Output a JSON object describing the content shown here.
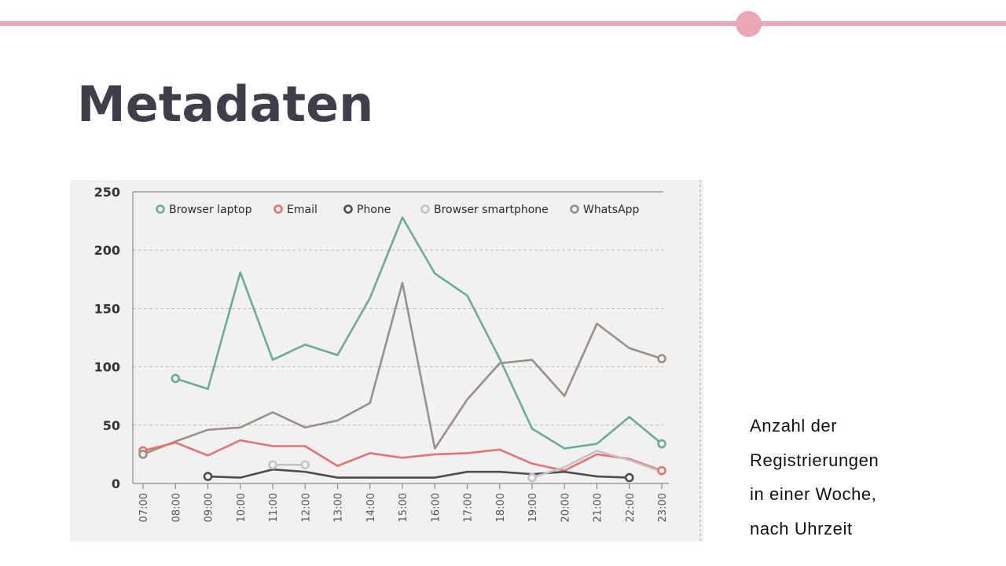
{
  "page": {
    "title": "Metadaten",
    "caption_lines": [
      "Anzahl der",
      "Registrierungen",
      "in einer Woche,",
      "nach Uhrzeit"
    ]
  },
  "colors": {
    "accent": "#eaa6b4",
    "title": "#3f3f4c"
  },
  "chart_data": {
    "type": "line",
    "categories": [
      "07:00",
      "08:00",
      "09:00",
      "10:00",
      "11:00",
      "12:00",
      "13:00",
      "14:00",
      "15:00",
      "16:00",
      "17:00",
      "18:00",
      "19:00",
      "20:00",
      "21:00",
      "22:00",
      "23:00"
    ],
    "ylim": [
      0,
      250
    ],
    "yticks": [
      0,
      50,
      100,
      150,
      200,
      250
    ],
    "grid": true,
    "legend_position": "top",
    "series": [
      {
        "name": "Browser laptop",
        "color": "#6aaba0",
        "values": [
          null,
          90,
          81,
          181,
          106,
          119,
          110,
          159,
          228,
          180,
          161,
          107,
          47,
          30,
          34,
          57,
          34
        ]
      },
      {
        "name": "Email",
        "color": "#e57273",
        "values": [
          28,
          35,
          24,
          37,
          32,
          32,
          15,
          26,
          22,
          25,
          26,
          29,
          17,
          11,
          25,
          21,
          11
        ]
      },
      {
        "name": "Phone",
        "color": "#4e4e4e",
        "values": [
          null,
          null,
          6,
          5,
          12,
          10,
          5,
          5,
          5,
          5,
          10,
          10,
          8,
          10,
          6,
          5,
          null
        ]
      },
      {
        "name": "Browser smartphone",
        "color": "#c3c3c3",
        "values": [
          null,
          null,
          null,
          null,
          16,
          16,
          null,
          null,
          null,
          null,
          null,
          null,
          5,
          14,
          28,
          20,
          10
        ]
      },
      {
        "name": "WhatsApp",
        "color": "#9b8f88",
        "values": [
          25,
          36,
          46,
          48,
          61,
          48,
          54,
          69,
          172,
          30,
          72,
          103,
          106,
          75,
          137,
          116,
          107
        ]
      }
    ],
    "markers": [
      {
        "series": 0,
        "index": 1
      },
      {
        "series": 0,
        "index": 16
      },
      {
        "series": 1,
        "index": 0
      },
      {
        "series": 1,
        "index": 16
      },
      {
        "series": 2,
        "index": 2
      },
      {
        "series": 2,
        "index": 15
      },
      {
        "series": 3,
        "index": 4
      },
      {
        "series": 3,
        "index": 5
      },
      {
        "series": 3,
        "index": 12
      },
      {
        "series": 4,
        "index": 0
      },
      {
        "series": 4,
        "index": 16
      }
    ]
  }
}
